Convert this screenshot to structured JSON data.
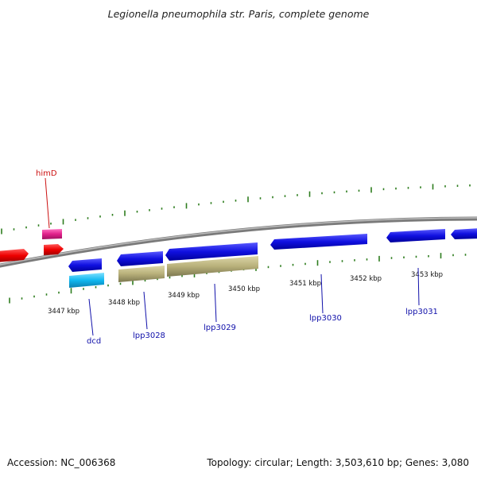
{
  "title": "Legionella pneumophila str. Paris, complete genome",
  "footer": {
    "accession": "Accession: NC_006368",
    "summary": "Topology: circular; Length: 3,503,610 bp; Genes: 3,080"
  },
  "colors": {
    "backbone": "#8a8a8a",
    "tick": "#2e7d1e",
    "gene_blue": "#1010e0",
    "gene_red": "#ee0000",
    "gene_pink": "#e0208a",
    "gene_cyan": "#10b8f0",
    "gene_khaki": "#b8b07a",
    "label_blue": "#1010aa",
    "label_red": "#cc1111"
  },
  "scale_labels": [
    "3447 kbp",
    "3448 kbp",
    "3449 kbp",
    "3450 kbp",
    "3451 kbp",
    "3452 kbp",
    "3453 kbp"
  ],
  "gene_labels": [
    {
      "text": "himD",
      "color": "red"
    },
    {
      "text": "dcd",
      "color": "blue"
    },
    {
      "text": "lpp3028",
      "color": "blue"
    },
    {
      "text": "lpp3029",
      "color": "blue"
    },
    {
      "text": "lpp3030",
      "color": "blue"
    },
    {
      "text": "lpp3031",
      "color": "blue"
    }
  ]
}
